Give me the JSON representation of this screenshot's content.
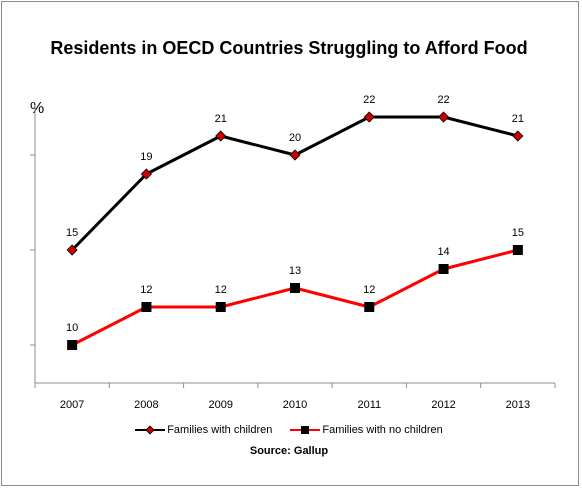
{
  "chart_data": {
    "type": "line",
    "title": "Residents in OECD Countries Struggling to Afford Food",
    "ylabel": "%",
    "xlabel": "",
    "categories": [
      "2007",
      "2008",
      "2009",
      "2010",
      "2011",
      "2012",
      "2013"
    ],
    "series": [
      {
        "name": "Families with children",
        "values": [
          15,
          19,
          21,
          20,
          22,
          22,
          21
        ],
        "color": "#000000",
        "marker": "diamond",
        "marker_color": "#cc0000"
      },
      {
        "name": "Families with no children",
        "values": [
          10,
          12,
          12,
          13,
          12,
          14,
          15
        ],
        "color": "#ff0000",
        "marker": "square",
        "marker_color": "#000000"
      }
    ],
    "ylim": [
      8,
      23
    ],
    "grid": false,
    "legend": "bottom",
    "source": "Source: Gallup"
  }
}
